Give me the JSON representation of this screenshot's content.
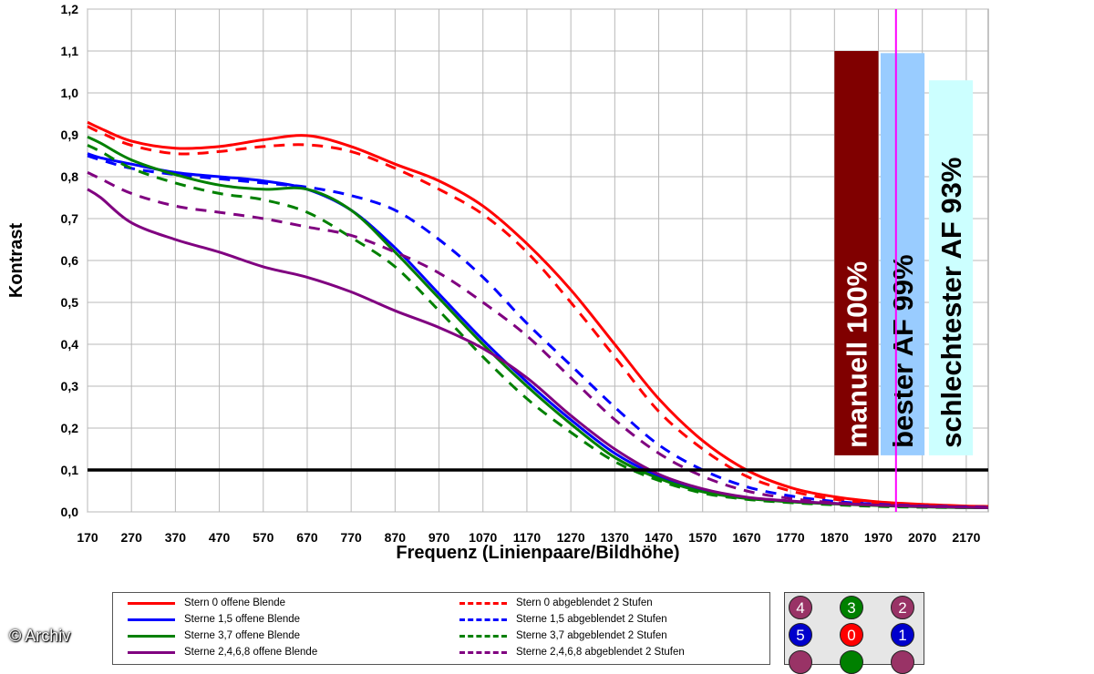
{
  "chart_data": {
    "type": "line",
    "title": "",
    "xlabel": "Frequenz (Linienpaare/Bildhöhe)",
    "ylabel": "Kontrast",
    "xlim": [
      170,
      2220
    ],
    "ylim": [
      0,
      1.2
    ],
    "x_ticks": [
      "170",
      "270",
      "370",
      "470",
      "570",
      "670",
      "770",
      "870",
      "970",
      "1070",
      "1170",
      "1270",
      "1370",
      "1470",
      "1570",
      "1670",
      "1770",
      "1870",
      "1970",
      "2070",
      "2170"
    ],
    "y_ticks": [
      "0,0",
      "0,1",
      "0,2",
      "0,3",
      "0,4",
      "0,5",
      "0,6",
      "0,7",
      "0,8",
      "0,9",
      "1,0",
      "1,1",
      "1,2"
    ],
    "grid": true,
    "x": [
      170,
      200,
      270,
      370,
      470,
      570,
      670,
      770,
      870,
      970,
      1070,
      1170,
      1270,
      1370,
      1470,
      1570,
      1670,
      1770,
      1870,
      1970,
      2070,
      2170,
      2220
    ],
    "series": [
      {
        "name": "Stern 0 offene Blende",
        "color": "#ff0000",
        "dash": false,
        "values": [
          0.93,
          0.915,
          0.885,
          0.868,
          0.872,
          0.888,
          0.898,
          0.872,
          0.83,
          0.79,
          0.73,
          0.64,
          0.53,
          0.4,
          0.27,
          0.17,
          0.1,
          0.058,
          0.036,
          0.024,
          0.018,
          0.014,
          0.013
        ]
      },
      {
        "name": "Stern 0 abgeblendet 2 Stufen",
        "color": "#ff0000",
        "dash": true,
        "values": [
          0.92,
          0.905,
          0.875,
          0.855,
          0.86,
          0.872,
          0.876,
          0.86,
          0.82,
          0.77,
          0.71,
          0.62,
          0.5,
          0.37,
          0.24,
          0.15,
          0.085,
          0.05,
          0.03,
          0.02,
          0.015,
          0.012,
          0.011
        ]
      },
      {
        "name": "Sterne 1,5 offene Blende",
        "color": "#0000ff",
        "dash": false,
        "values": [
          0.855,
          0.845,
          0.83,
          0.81,
          0.8,
          0.79,
          0.77,
          0.72,
          0.63,
          0.52,
          0.41,
          0.31,
          0.22,
          0.14,
          0.085,
          0.05,
          0.033,
          0.025,
          0.02,
          0.016,
          0.013,
          0.011,
          0.01
        ]
      },
      {
        "name": "Sterne 1,5 abgeblendet 2 Stufen",
        "color": "#0000ff",
        "dash": true,
        "values": [
          0.85,
          0.84,
          0.82,
          0.805,
          0.795,
          0.785,
          0.775,
          0.755,
          0.72,
          0.65,
          0.56,
          0.45,
          0.35,
          0.25,
          0.16,
          0.1,
          0.06,
          0.038,
          0.025,
          0.018,
          0.014,
          0.012,
          0.011
        ]
      },
      {
        "name": "Sterne 3,7 offene Blende",
        "color": "#008000",
        "dash": false,
        "values": [
          0.895,
          0.88,
          0.84,
          0.805,
          0.78,
          0.77,
          0.77,
          0.72,
          0.62,
          0.51,
          0.4,
          0.3,
          0.21,
          0.13,
          0.08,
          0.048,
          0.032,
          0.024,
          0.019,
          0.015,
          0.012,
          0.01,
          0.01
        ]
      },
      {
        "name": "Sterne 3,7 abgeblendet 2 Stufen",
        "color": "#008000",
        "dash": true,
        "values": [
          0.875,
          0.86,
          0.82,
          0.785,
          0.76,
          0.745,
          0.715,
          0.655,
          0.585,
          0.48,
          0.37,
          0.27,
          0.19,
          0.12,
          0.075,
          0.045,
          0.03,
          0.022,
          0.017,
          0.013,
          0.011,
          0.01,
          0.01
        ]
      },
      {
        "name": "Sterne 2,4,6,8 offene Blende",
        "color": "#800080",
        "dash": false,
        "values": [
          0.77,
          0.75,
          0.69,
          0.65,
          0.62,
          0.585,
          0.56,
          0.525,
          0.48,
          0.44,
          0.39,
          0.32,
          0.23,
          0.15,
          0.09,
          0.055,
          0.035,
          0.026,
          0.02,
          0.016,
          0.013,
          0.011,
          0.01
        ]
      },
      {
        "name": "Sterne 2,4,6,8 abgeblendet 2 Stufen",
        "color": "#800080",
        "dash": true,
        "values": [
          0.81,
          0.795,
          0.76,
          0.73,
          0.715,
          0.7,
          0.68,
          0.66,
          0.62,
          0.57,
          0.5,
          0.42,
          0.32,
          0.22,
          0.14,
          0.085,
          0.05,
          0.032,
          0.022,
          0.016,
          0.013,
          0.011,
          0.01
        ]
      }
    ],
    "reference_lines": [
      {
        "axis": "y",
        "value": 0.1,
        "color": "#000000"
      },
      {
        "axis": "x",
        "value": 2010,
        "color": "#ff00ff"
      }
    ],
    "bars": [
      {
        "label": "manuell 100%",
        "x0": 1870,
        "x1": 1970,
        "value": 1.1,
        "fill": "#800000",
        "text_color": "#ffffff"
      },
      {
        "label": "bester AF 99%",
        "x0": 1975,
        "x1": 2075,
        "value": 1.095,
        "fill": "#99ccff",
        "text_color": "#000000"
      },
      {
        "label": "schlechtester AF 93%",
        "x0": 2085,
        "x1": 2185,
        "value": 1.03,
        "fill": "#ccffff",
        "text_color": "#000000"
      }
    ],
    "bar_bottom": 0.135,
    "legend_placement": "bottom"
  },
  "stars": {
    "circles": [
      {
        "label": "4",
        "color": "#993366"
      },
      {
        "label": "3",
        "color": "#008000"
      },
      {
        "label": "2",
        "color": "#993366"
      },
      {
        "label": "5",
        "color": "#0000cc"
      },
      {
        "label": "0",
        "color": "#ff0000"
      },
      {
        "label": "1",
        "color": "#0000cc"
      },
      {
        "label": "",
        "color": "#993366"
      },
      {
        "label": "",
        "color": "#008000"
      },
      {
        "label": "",
        "color": "#993366"
      }
    ]
  },
  "watermark": "© Archiv"
}
